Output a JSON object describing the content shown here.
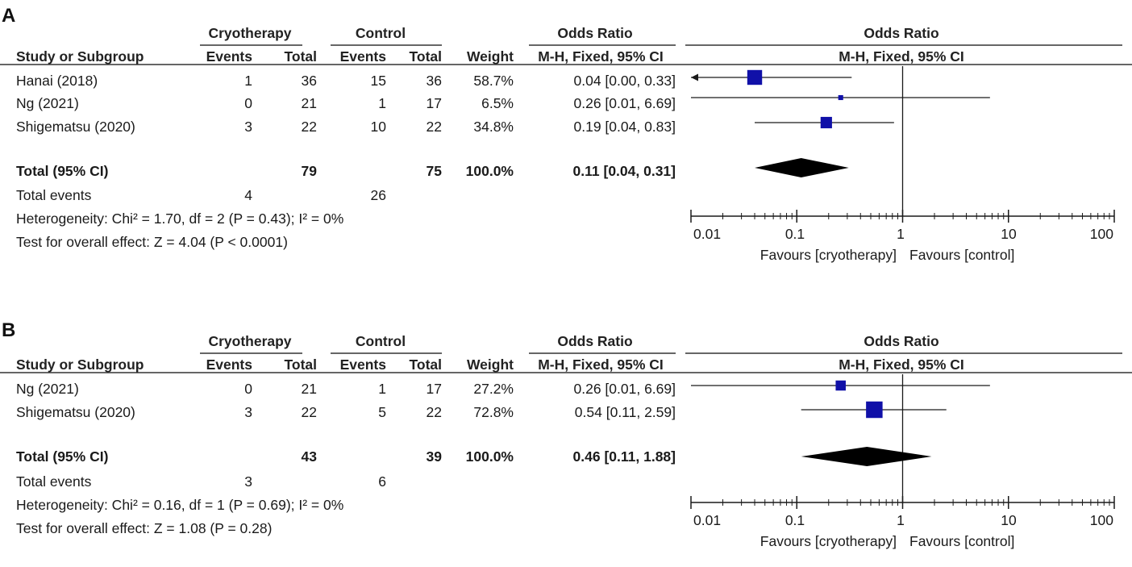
{
  "chart_data": [
    {
      "type": "forest",
      "panel": "A",
      "headers": {
        "group1": "Cryotherapy",
        "group2": "Control",
        "effect_title": "Odds Ratio",
        "study_col": "Study or Subgroup",
        "events": "Events",
        "total": "Total",
        "weight": "Weight",
        "method": "M-H, Fixed, 95% CI"
      },
      "studies": [
        {
          "name": "Hanai (2018)",
          "e1": "1",
          "n1": "36",
          "e2": "15",
          "n2": "36",
          "weight": "58.7%",
          "ci_text": "0.04 [0.00, 0.33]",
          "or": 0.04,
          "lo": 0.0,
          "hi": 0.33
        },
        {
          "name": "Ng (2021)",
          "e1": "0",
          "n1": "21",
          "e2": "1",
          "n2": "17",
          "weight": "6.5%",
          "ci_text": "0.26 [0.01, 6.69]",
          "or": 0.26,
          "lo": 0.01,
          "hi": 6.69
        },
        {
          "name": "Shigematsu (2020)",
          "e1": "3",
          "n1": "22",
          "e2": "10",
          "n2": "22",
          "weight": "34.8%",
          "ci_text": "0.19 [0.04, 0.83]",
          "or": 0.19,
          "lo": 0.04,
          "hi": 0.83
        }
      ],
      "total": {
        "label": "Total (95% CI)",
        "n1": "79",
        "n2": "75",
        "weight": "100.0%",
        "ci_text": "0.11 [0.04, 0.31]",
        "or": 0.11,
        "lo": 0.04,
        "hi": 0.31
      },
      "events_row": {
        "label": "Total events",
        "e1": "4",
        "e2": "26"
      },
      "heterogeneity": "Heterogeneity: Chi² = 1.70, df = 2 (P = 0.43); I² = 0%",
      "overall": "Test for overall effect: Z = 4.04 (P < 0.0001)",
      "axis": {
        "scale": "log",
        "ticks": [
          0.01,
          0.1,
          1,
          10,
          100
        ],
        "tick_labels": [
          "0.01",
          "0.1",
          "1",
          "10",
          "100"
        ]
      },
      "favours_left": "Favours [cryotherapy]",
      "favours_right": "Favours [control]"
    },
    {
      "type": "forest",
      "panel": "B",
      "headers": {
        "group1": "Cryotherapy",
        "group2": "Control",
        "effect_title": "Odds Ratio",
        "study_col": "Study or Subgroup",
        "events": "Events",
        "total": "Total",
        "weight": "Weight",
        "method": "M-H, Fixed, 95% CI"
      },
      "studies": [
        {
          "name": "Ng (2021)",
          "e1": "0",
          "n1": "21",
          "e2": "1",
          "n2": "17",
          "weight": "27.2%",
          "ci_text": "0.26 [0.01, 6.69]",
          "or": 0.26,
          "lo": 0.01,
          "hi": 6.69
        },
        {
          "name": "Shigematsu (2020)",
          "e1": "3",
          "n1": "22",
          "e2": "5",
          "n2": "22",
          "weight": "72.8%",
          "ci_text": "0.54 [0.11, 2.59]",
          "or": 0.54,
          "lo": 0.11,
          "hi": 2.59
        }
      ],
      "total": {
        "label": "Total (95% CI)",
        "n1": "43",
        "n2": "39",
        "weight": "100.0%",
        "ci_text": "0.46 [0.11, 1.88]",
        "or": 0.46,
        "lo": 0.11,
        "hi": 1.88
      },
      "events_row": {
        "label": "Total events",
        "e1": "3",
        "e2": "6"
      },
      "heterogeneity": "Heterogeneity: Chi² = 0.16, df = 1 (P = 0.69); I² = 0%",
      "overall": "Test for overall effect: Z = 1.08 (P = 0.28)",
      "axis": {
        "scale": "log",
        "ticks": [
          0.01,
          0.1,
          1,
          10,
          100
        ],
        "tick_labels": [
          "0.01",
          "0.1",
          "1",
          "10",
          "100"
        ]
      },
      "favours_left": "Favours [cryotherapy]",
      "favours_right": "Favours [control]"
    }
  ],
  "colors": {
    "marker": "#1010a8",
    "diamond": "#000000",
    "line": "#1a1a1a"
  }
}
